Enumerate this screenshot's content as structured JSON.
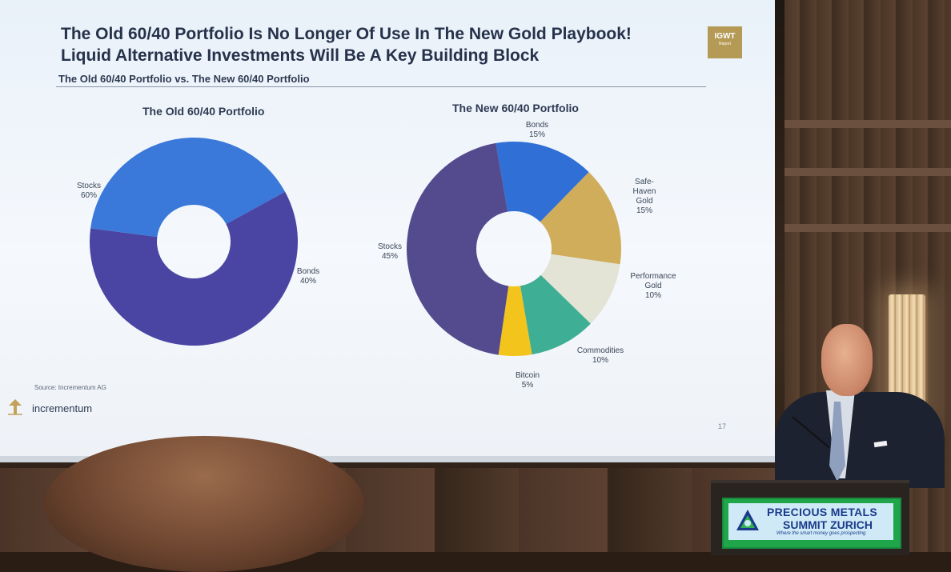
{
  "slide": {
    "title_line1": "The Old 60/40 Portfolio Is No Longer Of Use In The New Gold Playbook!",
    "title_line2": "Liquid Alternative Investments Will Be A Key Building Block",
    "subtitle": "The Old 60/40 Portfolio vs. The New 60/40 Portfolio",
    "badge_main": "IGWT",
    "badge_sub": "Report",
    "source": "Source: Incrementum AG",
    "brand": "incrementum",
    "page_number": "17"
  },
  "chart_data": [
    {
      "type": "pie",
      "title": "The Old 60/40 Portfolio",
      "slices": [
        {
          "label": "Stocks",
          "pct": "60%",
          "value": 60,
          "color": "#4a45a3"
        },
        {
          "label": "Bonds",
          "pct": "40%",
          "value": 40,
          "color": "#3a79d9"
        }
      ]
    },
    {
      "type": "pie",
      "title": "The New 60/40 Portfolio",
      "slices": [
        {
          "label": "Bonds",
          "pct": "15%",
          "value": 15,
          "color": "#2f6fd6"
        },
        {
          "label": "Safe-Haven Gold",
          "pct": "15%",
          "value": 15,
          "color": "#cfad5a"
        },
        {
          "label": "Performance Gold",
          "pct": "10%",
          "value": 10,
          "color": "#e3e3d6"
        },
        {
          "label": "Commodities",
          "pct": "10%",
          "value": 10,
          "color": "#3eae94"
        },
        {
          "label": "Bitcoin",
          "pct": "5%",
          "value": 5,
          "color": "#f3c51c"
        },
        {
          "label": "Stocks",
          "pct": "45%",
          "value": 45,
          "color": "#544b8e"
        }
      ]
    }
  ],
  "sign": {
    "line1": "PRECIOUS METALS",
    "line2": "SUMMIT ZURICH",
    "line3": "Where the smart money goes prospecting"
  }
}
